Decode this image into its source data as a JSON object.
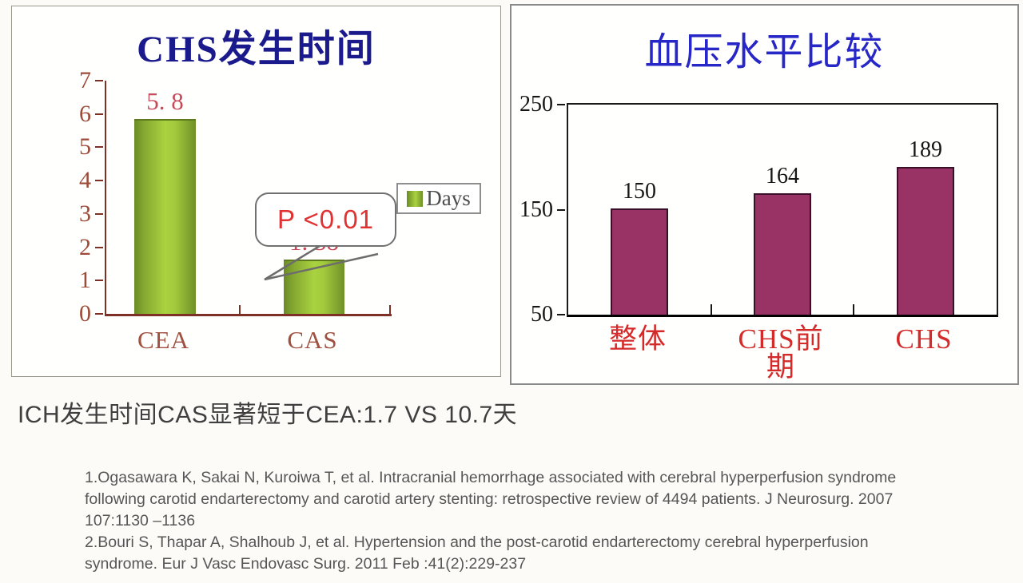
{
  "chart_data": [
    {
      "type": "bar",
      "title": "CHS发生时间",
      "categories": [
        "CEA",
        "CAS"
      ],
      "values": [
        5.8,
        1.58
      ],
      "value_labels": [
        "5. 8",
        "1. 58"
      ],
      "ylim": [
        0,
        7
      ],
      "y_ticks": [
        "7",
        "6",
        "5",
        "4",
        "3",
        "2",
        "1",
        "0"
      ],
      "legend": [
        "Days"
      ],
      "legend_position": "right",
      "annotation": "P <0.01",
      "grid": false,
      "xlabel": "",
      "ylabel": ""
    },
    {
      "type": "bar",
      "title": "血压水平比较",
      "categories": [
        "整体",
        "CHS前期",
        "CHS"
      ],
      "values": [
        150,
        164,
        189
      ],
      "value_labels": [
        "150",
        "164",
        "189"
      ],
      "ylim": [
        50,
        250
      ],
      "y_ticks": [
        "250",
        "150",
        "50"
      ],
      "grid": false,
      "xlabel": "",
      "ylabel": ""
    }
  ],
  "conclusion": "ICH发生时间CAS显著短于CEA:1.7 VS 10.7天",
  "references": {
    "lines": [
      "1.Ogasawara K, Sakai N, Kuroiwa T, et al. Intracranial hemorrhage associated with cerebral hyperperfusion syndrome",
      "following carotid endarterectomy and carotid artery stenting: retrospective review of 4494 patients. J Neurosurg. 2007",
      "107:1130 –1136",
      "2.Bouri S, Thapar A, Shalhoub J, et al. Hypertension and the post-carotid endarterectomy cerebral hyperperfusion",
      "syndrome. Eur J Vasc Endovasc Surg. 2011 Feb :41(2):229-237"
    ]
  },
  "colors": {
    "left_title": "#1a1a8c",
    "right_title": "#2727c8",
    "left_bar_center": "#a9d23f",
    "left_bar_edge": "#6b8b26",
    "left_axis": "#7e2f26",
    "left_tick_label": "#9d4b39",
    "left_value_label": "#c64a5a",
    "p_value_red": "#e03232",
    "right_bar": "#993366",
    "right_axis": "#1a1a1a",
    "right_category_label": "#d42a2a"
  }
}
